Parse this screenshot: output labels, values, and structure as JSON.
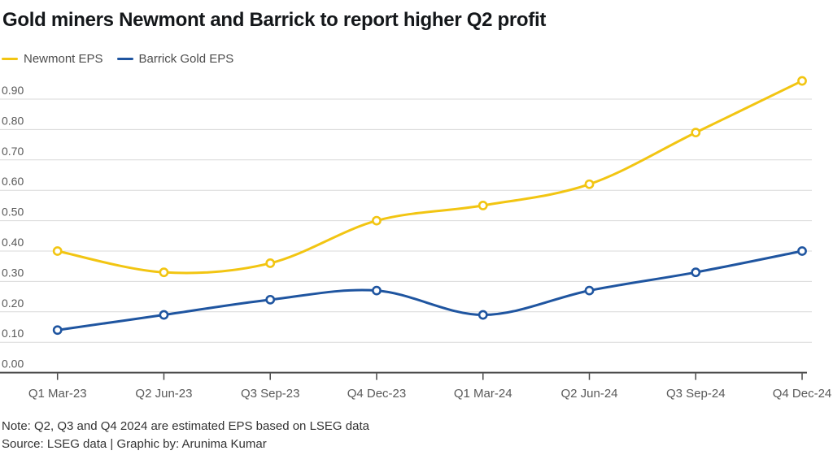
{
  "chart_data": {
    "type": "line",
    "title": "Gold miners Newmont and Barrick to report higher Q2 profit",
    "categories": [
      "Q1 Mar-23",
      "Q2 Jun-23",
      "Q3 Sep-23",
      "Q4 Dec-23",
      "Q1 Mar-24",
      "Q2 Jun-24",
      "Q3 Sep-24",
      "Q4 Dec-24"
    ],
    "series": [
      {
        "name": "Newmont EPS",
        "color": "#F2C512",
        "values": [
          0.4,
          0.33,
          0.36,
          0.5,
          0.55,
          0.62,
          0.79,
          0.96
        ]
      },
      {
        "name": "Barrick Gold EPS",
        "color": "#1F55A0",
        "values": [
          0.14,
          0.19,
          0.24,
          0.27,
          0.19,
          0.27,
          0.33,
          0.4
        ]
      }
    ],
    "xlabel": "",
    "ylabel": "",
    "ylim": [
      0.0,
      0.96
    ],
    "yticks": [
      0.0,
      0.1,
      0.2,
      0.3,
      0.4,
      0.5,
      0.6,
      0.7,
      0.8,
      0.9
    ],
    "ytick_labels": [
      "0.00",
      "0.10",
      "0.20",
      "0.30",
      "0.40",
      "0.50",
      "0.60",
      "0.70",
      "0.80",
      "0.90"
    ],
    "grid": true,
    "legend_position": "top-left",
    "smooth": true,
    "marker": "open-circle",
    "colors": {
      "gridline": "#d9d9d9",
      "axis": "#4a4a4a",
      "tick_label": "#595959",
      "marker_fill": "#ffffff"
    }
  },
  "notes": {
    "note": "Note: Q2, Q3 and Q4 2024 are estimated EPS based on LSEG data",
    "source": "Source: LSEG data | Graphic by: Arunima Kumar"
  }
}
